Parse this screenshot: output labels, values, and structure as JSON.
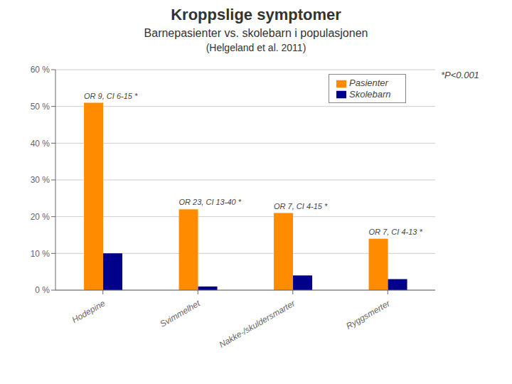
{
  "chart_data": {
    "type": "bar",
    "title": "Kroppslige symptomer",
    "subtitle": [
      "Barnepasienter vs. skolebarn i populasjonen",
      "(Helgeland et al. 2011)"
    ],
    "categories": [
      "Hodepine",
      "Svimmelhet",
      "Nakke-/skuldersmarter",
      "Ryggsmerter"
    ],
    "series": [
      {
        "name": "Pasienter",
        "color": "#FF8C00",
        "values": [
          51,
          22,
          21,
          14
        ]
      },
      {
        "name": "Skolebarn",
        "color": "#00008B",
        "values": [
          10,
          1,
          4,
          3
        ]
      }
    ],
    "ylim": [
      0,
      60
    ],
    "yticks": [
      {
        "value": 0,
        "label": "0 %"
      },
      {
        "value": 10,
        "label": "10 %"
      },
      {
        "value": 20,
        "label": "20 %"
      },
      {
        "value": 30,
        "label": "30 %"
      },
      {
        "value": 40,
        "label": "40 %"
      },
      {
        "value": 50,
        "label": "50 %"
      },
      {
        "value": 60,
        "label": "60 %"
      }
    ],
    "grid": true,
    "legend": "upper right",
    "annotations": [
      {
        "text": "OR 9, CI 6-15 *",
        "category": "Hodepine"
      },
      {
        "text": "OR 23, CI 13-40 *",
        "category": "Svimmelhet"
      },
      {
        "text": "OR 7, CI 4-15 *",
        "category": "Nakke-/skuldersmarter"
      },
      {
        "text": "OR 7, CI 4-13 *",
        "category": "Ryggsmerter"
      },
      {
        "text": "*P<0.001"
      }
    ]
  }
}
